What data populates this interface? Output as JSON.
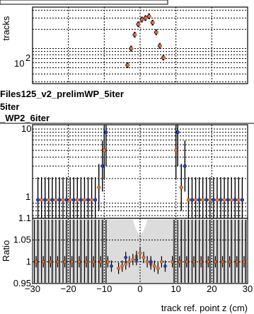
{
  "chart_data": [
    {
      "type": "scatter",
      "panel": "top",
      "ylabel": "tracks",
      "yscale": "log",
      "ytick_labels": [
        "10"
      ],
      "ytick_exponent": "2",
      "grid": true,
      "series": [
        {
          "name": "",
          "color": "#1f3fbf",
          "x": [
            -3.6,
            -2.6,
            -1.6,
            -0.6,
            0.4,
            1.4,
            2.4,
            3.4,
            4.4,
            5.4,
            6.4
          ],
          "y": [
            55,
            100,
            165,
            240,
            285,
            300,
            320,
            255,
            180,
            110,
            72
          ]
        },
        {
          "name": "",
          "color": "#e8702a",
          "x": [
            -3.4,
            -2.4,
            -1.4,
            -0.4,
            0.6,
            1.6,
            2.6,
            3.6,
            4.6,
            5.6,
            6.6
          ],
          "y": [
            55,
            100,
            165,
            240,
            285,
            300,
            320,
            255,
            180,
            110,
            72
          ]
        }
      ]
    },
    {
      "type": "scatter",
      "panel": "middle",
      "yscale": "log",
      "ytick_labels": [
        "1",
        "10"
      ],
      "grid": true,
      "series": [
        {
          "name": "",
          "color": "#1f3fbf",
          "x": [
            -28.5,
            -26.5,
            -24.5,
            -22.5,
            -20.5,
            -18.5,
            -16.5,
            -14.5,
            -12.5,
            -10.5,
            -9.5,
            10.5,
            12.5,
            14.5,
            16.5,
            18.5,
            20.5,
            22.5,
            24.5,
            26.5,
            28.5
          ],
          "y": [
            1,
            1,
            1,
            1,
            1,
            1,
            1,
            1,
            1,
            3,
            9,
            9,
            3,
            1,
            1,
            1,
            1,
            1,
            1,
            1,
            1
          ]
        },
        {
          "name": "",
          "color": "#e8702a",
          "x": [
            -27.5,
            -25.5,
            -23.5,
            -21.5,
            -19.5,
            -17.5,
            -15.5,
            -13.5,
            -11.5,
            -10,
            10,
            11.5,
            13.5,
            15.5,
            17.5,
            19.5,
            21.5,
            23.5,
            25.5,
            27.5
          ],
          "y": [
            1,
            1,
            1,
            1,
            1,
            1,
            1,
            1,
            1.5,
            5,
            5,
            1.5,
            1,
            1,
            1,
            1,
            1,
            1,
            1,
            1
          ]
        }
      ]
    },
    {
      "type": "scatter",
      "panel": "bottom",
      "xlabel": "track ref. point z (cm)",
      "ylabel": "Ratio",
      "xlim": [
        -30,
        30
      ],
      "ylim": [
        0.95,
        1.1
      ],
      "xtick_labels": [
        "−30",
        "−20",
        "−10",
        "0",
        "10",
        "20",
        "30"
      ],
      "ytick_labels": [
        "0.95",
        "1",
        "1.05",
        "1.1"
      ],
      "series": [
        {
          "name": "",
          "color": "#e8702a",
          "x": [
            -29,
            -27,
            -25,
            -23,
            -21,
            -19,
            -17,
            -15,
            -13,
            -11,
            -9,
            -6,
            -5,
            -4,
            -3,
            -2,
            -1,
            0,
            1,
            2,
            3,
            4,
            5,
            6,
            9,
            11,
            13,
            15,
            17,
            19,
            21,
            23,
            25,
            27,
            29
          ],
          "y": [
            1,
            1,
            1,
            1,
            1,
            1,
            1,
            1,
            1,
            1,
            1,
            0.985,
            0.99,
            0.995,
            1.0,
            1.005,
            1.012,
            1.02,
            1.01,
            1.0,
            0.995,
            0.99,
            0.985,
            1.0,
            1,
            1,
            1,
            1,
            1,
            1,
            1,
            1,
            1,
            1,
            1
          ]
        },
        {
          "name": "",
          "color": "#1f3fbf",
          "x": [
            -8,
            -4,
            -1,
            3,
            7
          ],
          "y": [
            0.99,
            1.01,
            1.005,
            1.0,
            0.99
          ]
        }
      ]
    }
  ],
  "legend": {
    "line1": "Files125_v2_prelimWP_5iter",
    "line2": "5iter",
    "line3": "_WP2_6iter"
  }
}
